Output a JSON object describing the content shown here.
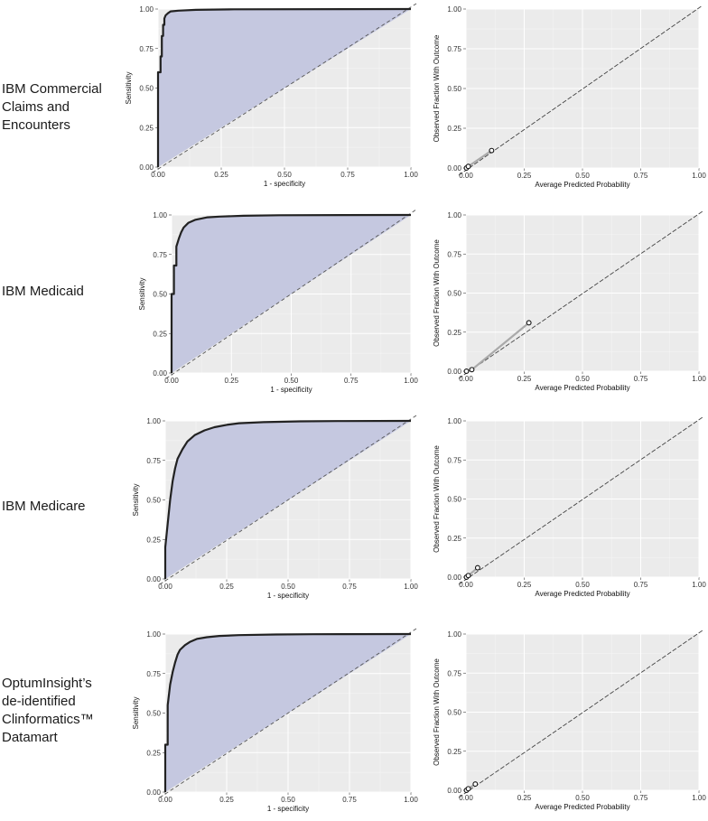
{
  "chart_data": [
    {
      "type": "line",
      "dataset": "IBM Commercial Claims and Encounters",
      "label_lines": [
        "IBM Commercial",
        "Claims and",
        "Encounters"
      ],
      "roc": {
        "xlabel": "1 - specificity",
        "ylabel": "Sensitivity",
        "xlim": [
          0,
          1
        ],
        "ylim": [
          0,
          1
        ],
        "x_ticks": [
          "0.00",
          "0.25",
          "0.50",
          "0.75",
          "1.00"
        ],
        "y_ticks": [
          "0.00",
          "0.25",
          "0.50",
          "0.75",
          "1.00"
        ],
        "x": [
          0,
          0,
          0.01,
          0.01,
          0.015,
          0.015,
          0.02,
          0.02,
          0.025,
          0.025,
          0.03,
          0.04,
          0.05,
          0.08,
          0.15,
          0.3,
          1.0
        ],
        "y": [
          0,
          0.6,
          0.6,
          0.7,
          0.7,
          0.83,
          0.83,
          0.9,
          0.9,
          0.94,
          0.96,
          0.975,
          0.985,
          0.99,
          0.995,
          0.998,
          1.0
        ],
        "fill_color": "#c5c8e0",
        "line_color": "#222222"
      },
      "calibration": {
        "xlabel": "Average Predicted Probability",
        "ylabel": "Observed Fraction With Outcome",
        "xlim": [
          0,
          1
        ],
        "ylim": [
          0,
          1
        ],
        "x_ticks": [
          "0.00",
          "0.25",
          "0.50",
          "0.75",
          "1.00"
        ],
        "y_ticks": [
          "0.00",
          "0.25",
          "0.50",
          "0.75",
          "1.00"
        ],
        "points": [
          [
            0.002,
            0.0
          ],
          [
            0.01,
            0.01
          ],
          [
            0.11,
            0.11
          ]
        ]
      }
    },
    {
      "type": "line",
      "dataset": "IBM Medicaid",
      "label_lines": [
        "IBM Medicaid"
      ],
      "roc": {
        "xlabel": "1 - specificity",
        "ylabel": "Sensitivity",
        "xlim": [
          0,
          1
        ],
        "ylim": [
          0,
          1
        ],
        "x_ticks": [
          "0.00",
          "0.25",
          "0.50",
          "0.75",
          "1.00"
        ],
        "y_ticks": [
          "0.00",
          "0.25",
          "0.50",
          "0.75",
          "1.00"
        ],
        "x": [
          0,
          0,
          0.01,
          0.01,
          0.02,
          0.02,
          0.03,
          0.04,
          0.05,
          0.07,
          0.1,
          0.15,
          0.2,
          0.3,
          0.45,
          1.0
        ],
        "y": [
          0,
          0.5,
          0.5,
          0.68,
          0.68,
          0.8,
          0.85,
          0.89,
          0.92,
          0.95,
          0.97,
          0.985,
          0.99,
          0.995,
          0.998,
          1.0
        ],
        "fill_color": "#c5c8e0",
        "line_color": "#222222"
      },
      "calibration": {
        "xlabel": "Average Predicted Probability",
        "ylabel": "Observed Fraction With Outcome",
        "xlim": [
          0,
          1
        ],
        "ylim": [
          0,
          1
        ],
        "x_ticks": [
          "0.00",
          "0.25",
          "0.50",
          "0.75",
          "1.00"
        ],
        "y_ticks": [
          "0.00",
          "0.25",
          "0.50",
          "0.75",
          "1.00"
        ],
        "points": [
          [
            0.002,
            0.0
          ],
          [
            0.025,
            0.01
          ],
          [
            0.27,
            0.31
          ]
        ]
      }
    },
    {
      "type": "line",
      "dataset": "IBM Medicare",
      "label_lines": [
        "IBM Medicare"
      ],
      "roc": {
        "xlabel": "1 - specificity",
        "ylabel": "Sensitivity",
        "xlim": [
          0,
          1
        ],
        "ylim": [
          0,
          1
        ],
        "x_ticks": [
          "0.00",
          "0.25",
          "0.50",
          "0.75",
          "1.00"
        ],
        "y_ticks": [
          "0.00",
          "0.25",
          "0.50",
          "0.75",
          "1.00"
        ],
        "x": [
          0,
          0,
          0.01,
          0.02,
          0.03,
          0.04,
          0.05,
          0.07,
          0.09,
          0.12,
          0.16,
          0.2,
          0.25,
          0.3,
          0.4,
          0.55,
          0.7,
          1.0
        ],
        "y": [
          0,
          0.2,
          0.35,
          0.5,
          0.62,
          0.7,
          0.76,
          0.82,
          0.87,
          0.91,
          0.94,
          0.96,
          0.975,
          0.985,
          0.992,
          0.997,
          0.999,
          1.0
        ],
        "fill_color": "#c5c8e0",
        "line_color": "#222222"
      },
      "calibration": {
        "xlabel": "Average Predicted Probability",
        "ylabel": "Observed Fraction With Outcome",
        "xlim": [
          0,
          1
        ],
        "ylim": [
          0,
          1
        ],
        "x_ticks": [
          "0.00",
          "0.25",
          "0.50",
          "0.75",
          "1.00"
        ],
        "y_ticks": [
          "0.00",
          "0.25",
          "0.50",
          "0.75",
          "1.00"
        ],
        "points": [
          [
            0.002,
            0.0
          ],
          [
            0.01,
            0.01
          ],
          [
            0.05,
            0.06
          ]
        ]
      }
    },
    {
      "type": "line",
      "dataset": "OptumInsight's de-identified Clinformatics Datamart",
      "label_lines": [
        "OptumInsight’s",
        "de-identified",
        "Clinformatics™",
        "Datamart"
      ],
      "roc": {
        "xlabel": "1 - specificity",
        "ylabel": "Sensitivity",
        "xlim": [
          0,
          1
        ],
        "ylim": [
          0,
          1
        ],
        "x_ticks": [
          "0.00",
          "0.25",
          "0.50",
          "0.75",
          "1.00"
        ],
        "y_ticks": [
          "0.00",
          "0.25",
          "0.50",
          "0.75",
          "1.00"
        ],
        "x": [
          0,
          0,
          0.01,
          0.01,
          0.02,
          0.03,
          0.04,
          0.05,
          0.06,
          0.08,
          0.1,
          0.13,
          0.17,
          0.22,
          0.3,
          0.45,
          0.6,
          1.0
        ],
        "y": [
          0,
          0.3,
          0.3,
          0.55,
          0.68,
          0.76,
          0.82,
          0.87,
          0.9,
          0.93,
          0.95,
          0.97,
          0.98,
          0.988,
          0.993,
          0.997,
          0.999,
          1.0
        ],
        "fill_color": "#c5c8e0",
        "line_color": "#222222"
      },
      "calibration": {
        "xlabel": "Average Predicted Probability",
        "ylabel": "Observed Fraction With Outcome",
        "xlim": [
          0,
          1
        ],
        "ylim": [
          0,
          1
        ],
        "x_ticks": [
          "0.00",
          "0.25",
          "0.50",
          "0.75",
          "1.00"
        ],
        "y_ticks": [
          "0.00",
          "0.25",
          "0.50",
          "0.75",
          "1.00"
        ],
        "points": [
          [
            0.002,
            0.0
          ],
          [
            0.01,
            0.01
          ],
          [
            0.04,
            0.04
          ]
        ]
      }
    }
  ]
}
